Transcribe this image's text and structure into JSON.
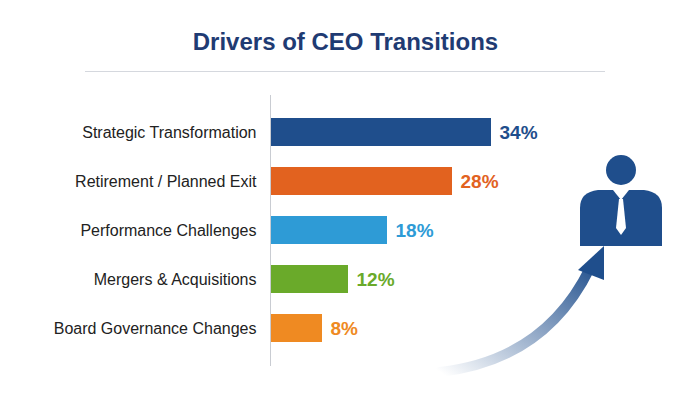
{
  "chart_data": {
    "type": "bar",
    "title": "Drivers of CEO Transitions",
    "orientation": "horizontal",
    "categories": [
      "Strategic Transformation",
      "Retirement / Planned Exit",
      "Performance Challenges",
      "Mergers & Acquisitions",
      "Board Governance Changes"
    ],
    "values": [
      34,
      28,
      18,
      12,
      8
    ],
    "value_labels": [
      "34%",
      "28%",
      "18%",
      "12%",
      "8%"
    ],
    "colors": [
      "#1f4e8c",
      "#e2621f",
      "#2e9bd6",
      "#6aaa2a",
      "#ef8a22"
    ],
    "data_labels": true,
    "tick_labels": "y",
    "grid": false
  }
}
